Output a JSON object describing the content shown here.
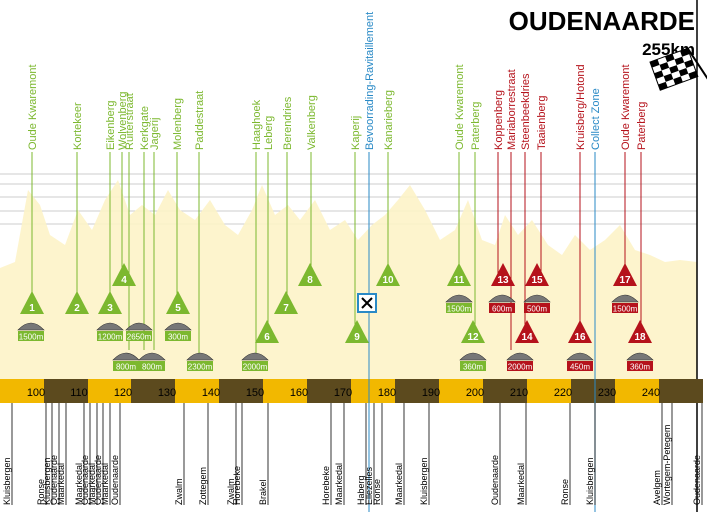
{
  "header": {
    "title": "OUDENAARDE",
    "distance": "255km"
  },
  "km_labels": [
    100,
    110,
    120,
    130,
    140,
    150,
    160,
    170,
    180,
    190,
    200,
    210,
    220,
    230,
    240
  ],
  "top_labels": [
    "Oude Kwaremont",
    "Kortekeer",
    "Eikenberg",
    "Wolvenberg",
    "Ruiterstraat",
    "Kerkgate",
    "Jagerij",
    "Molenberg",
    "Paddestraat",
    "Haaghoek",
    "Leberg",
    "Berendries",
    "Valkenberg",
    "Kaperij",
    "Bevoorrading-Ravitaillement",
    "Kanarieberg",
    "Oude Kwaremont",
    "Paterberg",
    "Koppenberg",
    "Mariaborrestraat",
    "Steenbeekdries",
    "Taaienberg",
    "Kruisberg/Hotond",
    "Collect Zone",
    "Oude Kwaremont",
    "Paterberg"
  ],
  "climbs": [
    1,
    2,
    3,
    4,
    5,
    6,
    7,
    8,
    9,
    10,
    11,
    12,
    13,
    14,
    15,
    16,
    17,
    18
  ],
  "cobbles": [
    "1500m",
    "1200m",
    "2650m",
    "800m",
    "800m",
    "300m",
    "2300m",
    "2000m",
    "1500m",
    "360m",
    "600m",
    "2000m",
    "500m",
    "450m",
    "1500m",
    "360m"
  ],
  "towns": [
    "Kluisbergen",
    "Ronse",
    "Kluisbergen",
    "Oudenaarde",
    "Maarkedal",
    "Maarkedal",
    "Oudenaarde",
    "Maarkedal",
    "Oudenaarde",
    "Maarkedal",
    "Oudenaarde",
    "Zwalm",
    "Zottegem",
    "Zwalm",
    "Horebeke",
    "Brakel",
    "Horebeke",
    "Maarkedal",
    "Haberg",
    "Ellezelles",
    "Ronse",
    "Maarkedal",
    "Kluisbergen",
    "Oudenaarde",
    "Maarkedal",
    "Ronse",
    "Kluisbergen",
    "Avelgem",
    "Wortegem-Petegem",
    "Oudenaarde"
  ]
}
